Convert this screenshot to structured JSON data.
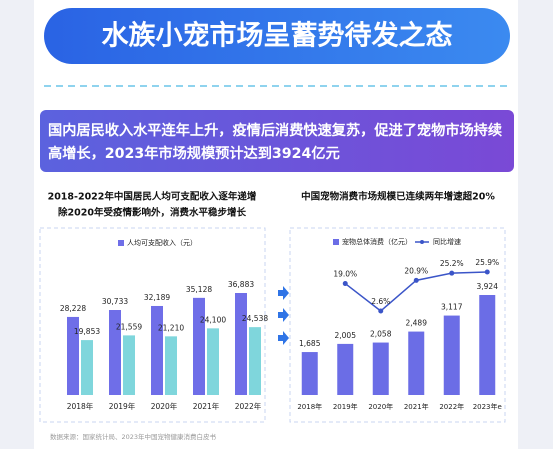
{
  "header": {
    "title": "水族小宠市场呈蓄势待发之态"
  },
  "banner": {
    "lines": [
      "国内居民收入水平连年上升，疫情后消费快速复苏，促进了宠物市场持续",
      "高增长，2023年市场规模预计达到3924亿元"
    ]
  },
  "source": "数据来源：国家统计局、2023年中国宠物健康消费白皮书",
  "chart_data": [
    {
      "type": "bar",
      "title": [
        "2018-2022年中国居民人均可支配收入逐年递增",
        "除2020年受疫情影响外，消费水平稳步增长"
      ],
      "categories": [
        "2018年",
        "2019年",
        "2020年",
        "2021年",
        "2022年"
      ],
      "series": [
        {
          "name": "人均可支配收入（元）",
          "color": "#6f6ee8",
          "values": [
            28228,
            30733,
            32189,
            35128,
            36883
          ],
          "value_labels": [
            "28,228",
            "30,733",
            "32,189",
            "35,128",
            "36,883"
          ]
        },
        {
          "color": "#7fd6dc",
          "values": [
            19853,
            21559,
            21210,
            24100,
            24538
          ],
          "value_labels": [
            "19,853",
            "21,559",
            "21,210",
            "24,100",
            "24,538"
          ]
        }
      ]
    },
    {
      "type": "combo",
      "title": [
        "中国宠物消费市场规模已连续两年增速超20%"
      ],
      "categories": [
        "2018年",
        "2019年",
        "2020年",
        "2021年",
        "2022年",
        "2023年e"
      ],
      "series": [
        {
          "name": "宠物总体消费（亿元）",
          "type": "bar",
          "color": "#6b6de6",
          "values": [
            1685,
            2005,
            2058,
            2489,
            3117,
            3924
          ],
          "value_labels": [
            "1,685",
            "2,005",
            "2,058",
            "2,489",
            "3,117",
            "3,924"
          ]
        },
        {
          "name": "同比增速",
          "type": "line",
          "color": "#3b55c8",
          "values": [
            null,
            19.0,
            2.6,
            20.9,
            25.2,
            25.9
          ],
          "value_labels": [
            null,
            "19.0%",
            "2.6%",
            "20.9%",
            "25.2%",
            "25.9%"
          ]
        }
      ]
    }
  ]
}
